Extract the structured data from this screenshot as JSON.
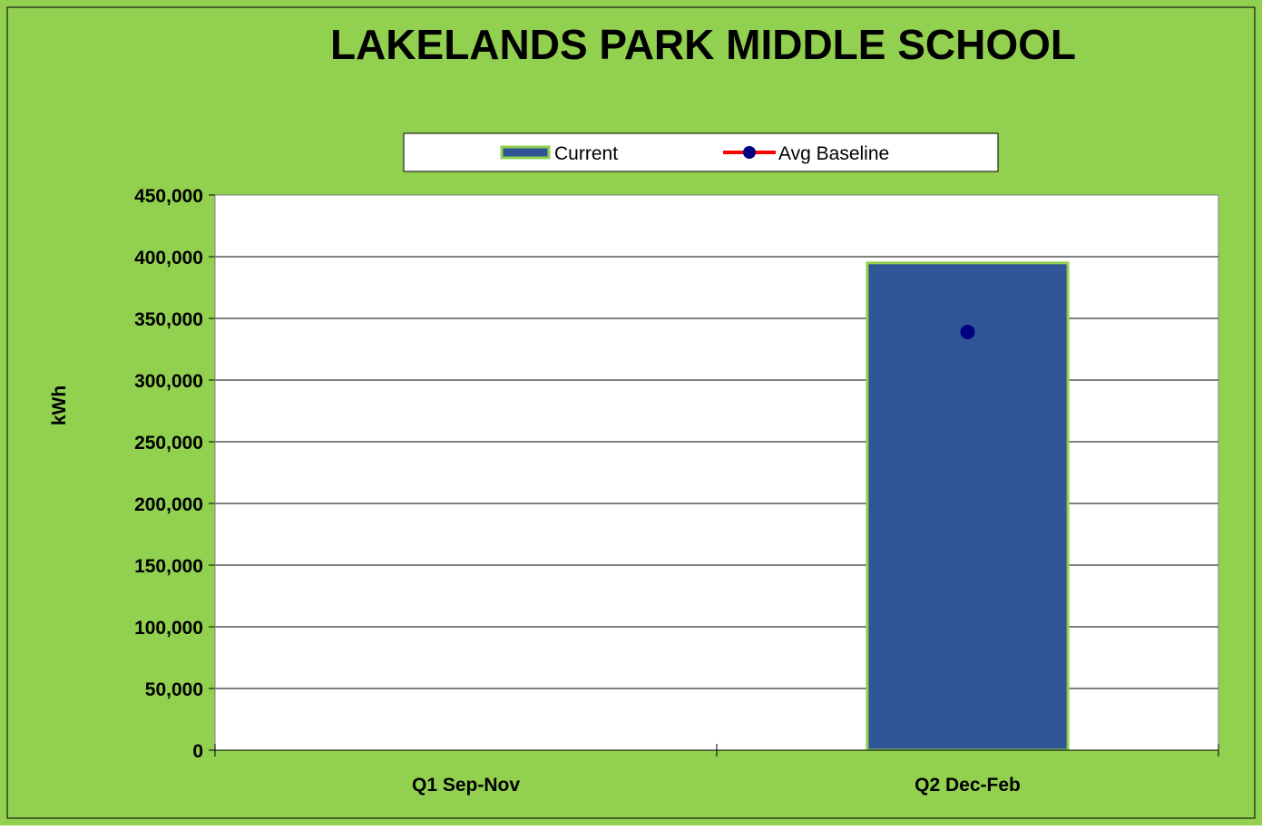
{
  "colors": {
    "background": "#92d050",
    "plot_area": "#ffffff",
    "bar_fill": "#2f5597",
    "bar_border": "#92d050",
    "baseline_line": "#ff0000",
    "baseline_marker": "#000080",
    "gridline": "#000000",
    "axis": "#808080",
    "text": "#000000"
  },
  "chart_data": {
    "type": "bar",
    "title": "LAKELANDS PARK MIDDLE SCHOOL",
    "xlabel": "",
    "ylabel": "kWh",
    "categories": [
      "Q1 Sep-Nov",
      "Q2 Dec-Feb"
    ],
    "series": [
      {
        "name": "Current",
        "kind": "bar",
        "values": [
          null,
          395000
        ]
      },
      {
        "name": "Avg Baseline",
        "kind": "line-marker",
        "values": [
          null,
          339000
        ]
      }
    ],
    "ylim": [
      0,
      450000
    ],
    "yticks": [
      0,
      50000,
      100000,
      150000,
      200000,
      250000,
      300000,
      350000,
      400000,
      450000
    ],
    "ytick_labels": [
      "0",
      "50,000",
      "100,000",
      "150,000",
      "200,000",
      "250,000",
      "300,000",
      "350,000",
      "400,000",
      "450,000"
    ],
    "grid": true,
    "legend_position": "top-center"
  }
}
